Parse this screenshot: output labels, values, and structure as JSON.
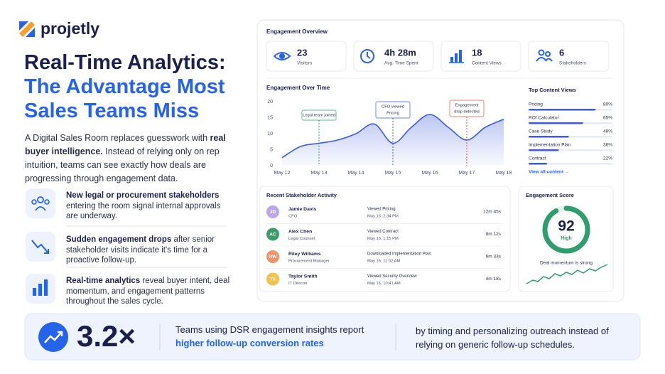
{
  "brand": "projetly",
  "hero": {
    "title_line1": "Real-Time Analytics:",
    "title_line2": "The Advantage Most",
    "title_line3": "Sales Teams Miss",
    "intro": [
      "A Digital Sales Room replaces guesswork with ",
      "real buyer intelligence.",
      " Instead of relying only on rep intuition, teams can see exactly how deals are progressing through engagement data."
    ]
  },
  "features": [
    {
      "bold": "New legal or procurement stakeholders",
      "text": " entering the room signal internal approvals are underway."
    },
    {
      "bold": "Sudden engagement drops",
      "text": " after senior stakeholder visits indicate it's time for a proactive follow-up."
    },
    {
      "bold": "Real-time analytics",
      "text": " reveal buyer intent, deal momentum, and engagement patterns throughout the sales cycle."
    }
  ],
  "dashboard": {
    "title": "Engagement Overview",
    "stats": [
      {
        "value": 23,
        "label": "Visitors"
      },
      {
        "value": "4h 28m",
        "label": "Avg. Time Spent"
      },
      {
        "value": 18,
        "label": "Content Views"
      },
      {
        "value": 6,
        "label": "Stakeholders"
      }
    ]
  },
  "chart_data": {
    "type": "area",
    "title": "Engagement Over Time",
    "categories": [
      "May 12",
      null,
      "May 13",
      null,
      "May 14",
      null,
      "May 15",
      null,
      "May 16",
      null,
      "May 17",
      null,
      "May 18"
    ],
    "values": [
      2.5,
      6,
      7,
      8,
      10,
      13,
      7,
      12,
      16,
      12,
      8,
      12,
      14.5
    ],
    "ylim": [
      0,
      20
    ],
    "yticks": [
      0,
      5,
      10,
      15,
      20
    ],
    "color": "#3b5bdb",
    "annotations": [
      {
        "x": "May 13",
        "lines": [
          "Legal team joined"
        ],
        "color": "#2f9e6e"
      },
      {
        "x": "May 15",
        "lines": [
          "CFO viewed",
          "Pricing"
        ],
        "color": "#3b5bdb"
      },
      {
        "x": "May 17",
        "lines": [
          "Engagement",
          "drop detected"
        ],
        "color": "#e0533d"
      }
    ]
  },
  "top_content": {
    "title": "Top Content Views",
    "items": [
      {
        "name": "Pricing",
        "value": 80,
        "value_label": "80%"
      },
      {
        "name": "ROI Calculator",
        "value": 65,
        "value_label": "65%"
      },
      {
        "name": "Case Study",
        "value": 48,
        "value_label": "48%"
      },
      {
        "name": "Implementation Plan",
        "value": 36,
        "value_label": "36%"
      },
      {
        "name": "Contract",
        "value": 22,
        "value_label": "22%"
      }
    ],
    "color": "#3b5bdb",
    "link": "View all content →"
  },
  "activity": {
    "title": "Recent Stakeholder Activity",
    "rows": [
      {
        "initials": "JD",
        "color": "#b9a7e8",
        "name": "Jamie Davis",
        "role": "CFO",
        "action": "Viewed Pricing",
        "time": "May 16, 2:34 PM",
        "duration": "12m 45s"
      },
      {
        "initials": "AC",
        "color": "#3d9a6b",
        "name": "Alex Chen",
        "role": "Legal Counsel",
        "action": "Viewed Contract",
        "time": "May 16, 1:15 PM",
        "duration": "8m 12s"
      },
      {
        "initials": "RW",
        "color": "#f0936b",
        "name": "Riley Williams",
        "role": "Procurement Manager",
        "action": "Downloaded Implementation Plan",
        "time": "May 16, 11:02 AM",
        "duration": "6m 33s"
      },
      {
        "initials": "TS",
        "color": "#f2c14e",
        "name": "Taylor Smith",
        "role": "IT Director",
        "action": "Viewed Security Overview",
        "time": "May 16, 10:41 AM",
        "duration": "4m 18s"
      }
    ]
  },
  "score": {
    "title": "Engagement Score",
    "value": 92,
    "label": "High",
    "color": "#2f9e6e",
    "caption": "Deal momentum is strong"
  },
  "footer": {
    "stat": "3.2×",
    "text1": "Teams using DSR engagement insights report",
    "highlight": "higher follow-up conversion rates",
    "text2": "by timing and personalizing outreach instead of relying on generic follow-up schedules."
  }
}
